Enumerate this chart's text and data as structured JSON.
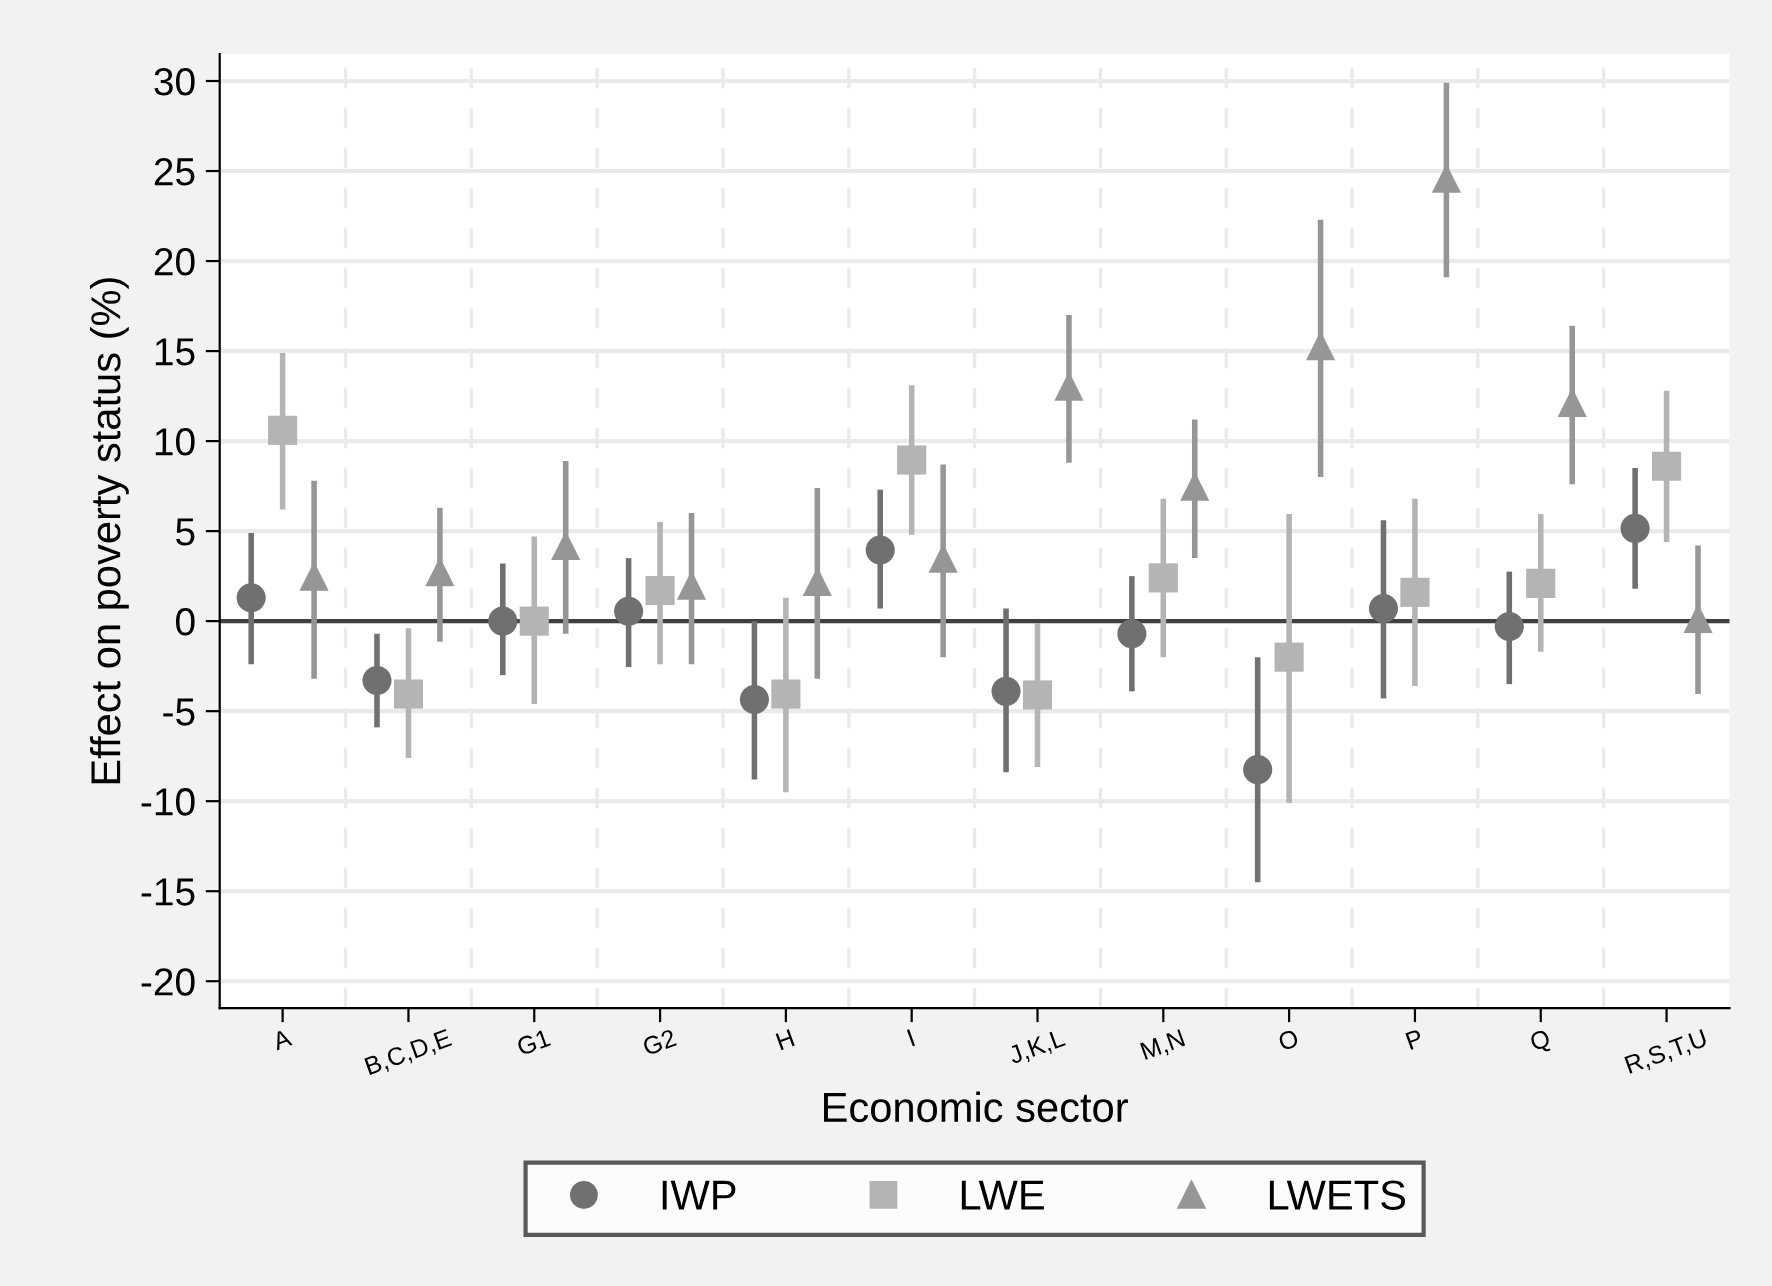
{
  "chart_data": {
    "type": "scatter",
    "xlabel": "Economic sector",
    "ylabel": "Effect on poverty status (%)",
    "categories": [
      "A",
      "B,C,D,E",
      "G1",
      "G2",
      "H",
      "I",
      "J,K,L",
      "M,N",
      "O",
      "P",
      "Q",
      "R,S,T,U"
    ],
    "series": [
      {
        "name": "IWP",
        "color": "#707070",
        "marker": "circle",
        "values": [
          1.3,
          -3.3,
          0,
          0.55,
          -4.35,
          3.95,
          -3.9,
          -0.7,
          -8.25,
          0.7,
          -0.3,
          5.15
        ],
        "errors": [
          [
            -2.4,
            4.9
          ],
          [
            -5.9,
            -0.7
          ],
          [
            -3.0,
            3.2
          ],
          [
            -2.55,
            3.5
          ],
          [
            -8.8,
            0
          ],
          [
            0.7,
            7.3
          ],
          [
            -8.4,
            0.7
          ],
          [
            -3.9,
            2.5
          ],
          [
            -14.5,
            -2.0
          ],
          [
            -4.3,
            5.6
          ],
          [
            -3.5,
            2.75
          ],
          [
            1.8,
            8.5
          ]
        ]
      },
      {
        "name": "LWE",
        "color": "#b4b4b4",
        "marker": "square",
        "values": [
          10.6,
          -4.05,
          0,
          1.7,
          -4.05,
          8.95,
          -4.1,
          2.4,
          -2.0,
          1.6,
          2.1,
          8.6
        ],
        "errors": [
          [
            6.2,
            14.9
          ],
          [
            -7.6,
            -0.4
          ],
          [
            -4.6,
            4.7
          ],
          [
            -2.4,
            5.5
          ],
          [
            -9.5,
            1.3
          ],
          [
            4.8,
            13.1
          ],
          [
            -8.1,
            -0.1
          ],
          [
            -2.0,
            6.8
          ],
          [
            -10.1,
            5.95
          ],
          [
            -3.6,
            6.8
          ],
          [
            -1.7,
            5.95
          ],
          [
            4.4,
            12.8
          ]
        ]
      },
      {
        "name": "LWETS",
        "color": "#969696",
        "marker": "triangle",
        "values": [
          2.5,
          2.75,
          4.2,
          2.0,
          2.2,
          3.5,
          13.05,
          7.5,
          15.3,
          24.6,
          12.15,
          0.15
        ],
        "errors": [
          [
            -3.2,
            7.8
          ],
          [
            -1.15,
            6.3
          ],
          [
            -0.7,
            8.9
          ],
          [
            -2.4,
            6.0
          ],
          [
            -3.2,
            7.4
          ],
          [
            -2.0,
            8.7
          ],
          [
            8.8,
            17.0
          ],
          [
            3.5,
            11.2
          ],
          [
            8.0,
            22.3
          ],
          [
            19.1,
            29.9
          ],
          [
            7.6,
            16.4
          ],
          [
            -4.05,
            4.2
          ]
        ]
      }
    ],
    "ylim": [
      -21.5,
      31.5
    ],
    "yticks": [
      -20,
      -15,
      -10,
      -5,
      0,
      5,
      10,
      15,
      20,
      25,
      30
    ],
    "ref_lines": [
      {
        "axis": "y",
        "value": 0,
        "color": "#404040"
      }
    ],
    "grid": true,
    "legend": "bottom"
  }
}
